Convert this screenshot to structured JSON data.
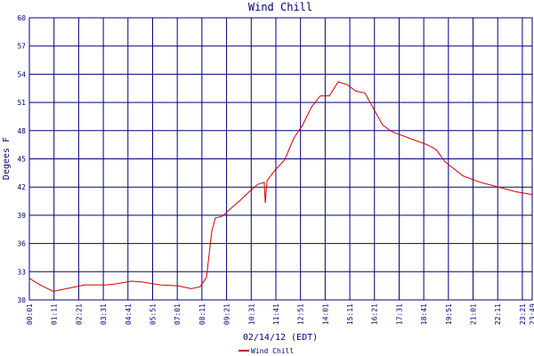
{
  "chart_data": {
    "type": "line",
    "title": "Wind Chill",
    "y_label": "Degees F",
    "x_label": "02/14/12 (EDT)",
    "x": [
      1,
      31,
      69,
      94,
      158,
      221,
      246,
      292,
      322,
      373,
      423,
      461,
      486,
      504,
      519,
      529,
      549,
      575,
      600,
      625,
      650,
      668,
      671,
      676,
      701,
      726,
      752,
      777,
      802,
      827,
      853,
      878,
      903,
      928,
      954,
      979,
      1004,
      1030,
      1080,
      1131,
      1156,
      1181,
      1232,
      1282,
      1333,
      1383,
      1429
    ],
    "series": [
      {
        "name": "Wind Chill",
        "color": "#cc0000",
        "values": [
          32.3,
          31.6,
          30.9,
          31.1,
          31.6,
          31.6,
          31.7,
          32.0,
          31.9,
          31.6,
          31.5,
          31.2,
          31.4,
          32.4,
          37.3,
          38.7,
          38.9,
          39.8,
          40.6,
          41.5,
          42.3,
          42.5,
          40.3,
          42.7,
          43.9,
          44.9,
          47.2,
          48.6,
          50.5,
          51.7,
          51.7,
          53.2,
          52.9,
          52.2,
          52.0,
          50.3,
          48.6,
          47.9,
          47.2,
          46.5,
          46.0,
          44.7,
          43.2,
          42.5,
          42.0,
          41.5,
          41.2
        ]
      }
    ],
    "xlim": [
      1,
      1429
    ],
    "xticks": [
      {
        "value": 1,
        "label": "00:01"
      },
      {
        "value": 71,
        "label": "01:11"
      },
      {
        "value": 141,
        "label": "02:21"
      },
      {
        "value": 211,
        "label": "03:31"
      },
      {
        "value": 281,
        "label": "04:41"
      },
      {
        "value": 351,
        "label": "05:51"
      },
      {
        "value": 421,
        "label": "07:01"
      },
      {
        "value": 491,
        "label": "08:11"
      },
      {
        "value": 561,
        "label": "09:21"
      },
      {
        "value": 631,
        "label": "10:31"
      },
      {
        "value": 701,
        "label": "11:41"
      },
      {
        "value": 771,
        "label": "12:51"
      },
      {
        "value": 841,
        "label": "14:01"
      },
      {
        "value": 911,
        "label": "15:11"
      },
      {
        "value": 981,
        "label": "16:21"
      },
      {
        "value": 1051,
        "label": "17:31"
      },
      {
        "value": 1121,
        "label": "18:41"
      },
      {
        "value": 1191,
        "label": "19:51"
      },
      {
        "value": 1261,
        "label": "21:01"
      },
      {
        "value": 1331,
        "label": "22:11"
      },
      {
        "value": 1401,
        "label": "23:21"
      },
      {
        "value": 1429,
        "label": "23:49"
      }
    ],
    "ylim": [
      30,
      60
    ],
    "yticks": [
      30,
      33,
      36,
      39,
      42,
      45,
      48,
      51,
      54,
      57,
      60
    ],
    "grid": true,
    "grid_color": "#000080",
    "legend": "bottom"
  }
}
